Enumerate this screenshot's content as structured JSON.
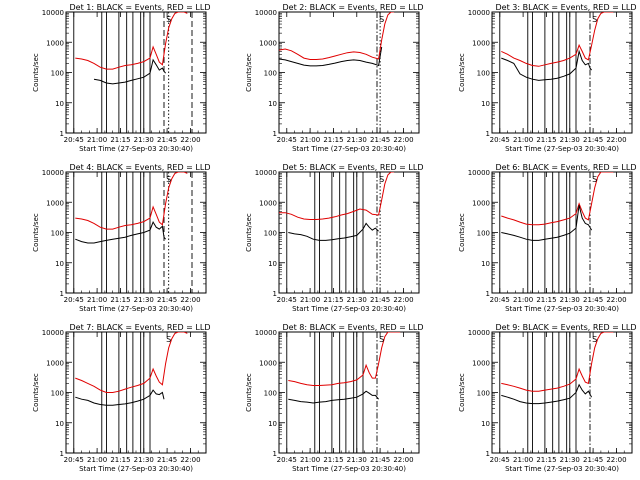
{
  "chart_data": {
    "type": "line",
    "layout": "3x3 grid",
    "shared": {
      "ylabel": "Counts/sec",
      "xlabel": "Start Time (27-Sep-03 20:30:40)",
      "y_scale": "log",
      "ylim": [
        1,
        10000
      ],
      "y_ticks": [
        1,
        10,
        100,
        1000,
        10000
      ],
      "y_tick_labels": [
        "1",
        "10",
        "100",
        "1000",
        "10000"
      ],
      "x_range_min": [
        10,
        100
      ],
      "x_ticks_min": [
        15,
        30,
        45,
        60,
        75,
        90
      ],
      "x_tick_labels": [
        "20:45",
        "21:00",
        "21:15",
        "21:30",
        "21:45",
        "22:00"
      ],
      "saa_label": "S",
      "series_colors": {
        "events": "#000000",
        "lld": "#e00000"
      }
    },
    "panels": [
      {
        "title": "Det 1: BLACK = Events, RED = LLD",
        "det": 1,
        "events_x": [
          28,
          32,
          36,
          40,
          44,
          48,
          52,
          56,
          60,
          64,
          66,
          68,
          70,
          72,
          73,
          74
        ],
        "events_y": [
          60,
          55,
          45,
          42,
          45,
          48,
          55,
          62,
          70,
          95,
          260,
          180,
          120,
          140,
          110,
          95
        ],
        "lld_x": [
          16,
          20,
          24,
          28,
          32,
          36,
          40,
          44,
          48,
          52,
          56,
          60,
          64,
          66,
          68,
          70,
          72,
          74,
          76,
          78,
          80,
          82,
          84,
          86,
          88
        ],
        "lld_y": [
          300,
          280,
          250,
          200,
          150,
          130,
          130,
          150,
          170,
          180,
          200,
          230,
          300,
          700,
          400,
          220,
          180,
          900,
          3000,
          6000,
          9000,
          10000,
          10000,
          10000,
          9000
        ],
        "solid_lines_min": [
          15,
          33,
          36,
          44,
          49,
          53,
          58,
          60,
          64
        ],
        "dashed_lines_min": [
          73,
          91
        ],
        "dotted_lines_min": [
          76
        ],
        "dashdot_lines_min": []
      },
      {
        "title": "Det 2: BLACK = Events, RED = LLD",
        "det": 2,
        "events_x": [
          10,
          14,
          18,
          22,
          26,
          30,
          34,
          38,
          42,
          46,
          50,
          54,
          58,
          62,
          66,
          70,
          74,
          76
        ],
        "events_y": [
          280,
          260,
          230,
          200,
          175,
          165,
          165,
          170,
          185,
          205,
          230,
          250,
          260,
          250,
          220,
          200,
          170,
          700
        ],
        "lld_x": [
          10,
          14,
          18,
          22,
          26,
          30,
          34,
          38,
          42,
          46,
          50,
          54,
          58,
          62,
          66,
          70,
          74,
          76,
          78,
          80,
          82,
          84
        ],
        "lld_y": [
          550,
          600,
          520,
          400,
          300,
          270,
          270,
          280,
          310,
          350,
          400,
          450,
          480,
          460,
          400,
          320,
          280,
          1200,
          4000,
          8000,
          10000,
          10000
        ],
        "solid_lines_min": [],
        "dashed_lines_min": [],
        "dotted_lines_min": [
          75
        ],
        "dashdot_lines_min": [
          73
        ]
      },
      {
        "title": "Det 3: BLACK = Events, RED = LLD",
        "det": 3,
        "events_x": [
          16,
          20,
          24,
          28,
          32,
          36,
          40,
          44,
          48,
          52,
          56,
          60,
          64,
          66,
          68,
          70,
          72,
          73,
          74
        ],
        "events_y": [
          300,
          250,
          200,
          90,
          70,
          60,
          55,
          58,
          60,
          65,
          75,
          90,
          140,
          500,
          250,
          180,
          200,
          140,
          120
        ],
        "lld_x": [
          16,
          20,
          24,
          28,
          32,
          36,
          40,
          44,
          48,
          52,
          56,
          60,
          64,
          66,
          68,
          70,
          72,
          74,
          76,
          78,
          80,
          82,
          84,
          86,
          88
        ],
        "lld_y": [
          500,
          400,
          300,
          250,
          200,
          170,
          160,
          180,
          200,
          220,
          250,
          300,
          400,
          800,
          500,
          300,
          260,
          800,
          2500,
          6000,
          9000,
          10000,
          10000,
          10000,
          10000
        ],
        "solid_lines_min": [
          15,
          33,
          36,
          44,
          49,
          53,
          58,
          60,
          64
        ],
        "dashed_lines_min": [],
        "dotted_lines_min": [],
        "dashdot_lines_min": [
          73
        ]
      },
      {
        "title": "Det 4: BLACK = Events, RED = LLD",
        "det": 4,
        "events_x": [
          16,
          20,
          24,
          28,
          32,
          36,
          40,
          44,
          48,
          52,
          56,
          60,
          64,
          66,
          68,
          70,
          72,
          73,
          74
        ],
        "events_y": [
          60,
          50,
          45,
          45,
          50,
          55,
          60,
          65,
          70,
          80,
          90,
          100,
          120,
          220,
          150,
          130,
          160,
          70,
          60
        ],
        "lld_x": [
          16,
          20,
          24,
          28,
          32,
          36,
          40,
          44,
          48,
          52,
          56,
          60,
          64,
          66,
          68,
          70,
          72,
          74,
          76,
          78,
          80,
          82,
          84,
          86,
          88
        ],
        "lld_y": [
          300,
          280,
          250,
          200,
          150,
          130,
          130,
          150,
          170,
          180,
          200,
          230,
          300,
          700,
          400,
          220,
          180,
          900,
          3000,
          6000,
          9000,
          10000,
          10000,
          10000,
          9000
        ],
        "solid_lines_min": [
          15,
          33,
          36,
          44,
          49,
          53,
          58,
          60,
          64
        ],
        "dashed_lines_min": [
          73,
          91
        ],
        "dotted_lines_min": [
          76
        ],
        "dashdot_lines_min": []
      },
      {
        "title": "Det 5: BLACK = Events, RED = LLD",
        "det": 5,
        "events_x": [
          16,
          20,
          24,
          28,
          32,
          36,
          40,
          44,
          48,
          52,
          56,
          60,
          64,
          66,
          68,
          70,
          72,
          74
        ],
        "events_y": [
          100,
          90,
          85,
          75,
          60,
          55,
          55,
          58,
          62,
          66,
          72,
          80,
          130,
          200,
          150,
          120,
          140,
          110
        ],
        "lld_x": [
          10,
          14,
          18,
          22,
          26,
          30,
          34,
          38,
          42,
          46,
          50,
          54,
          58,
          62,
          66,
          70,
          74,
          76,
          78,
          80,
          82,
          84
        ],
        "lld_y": [
          450,
          450,
          400,
          320,
          280,
          270,
          270,
          280,
          300,
          330,
          380,
          420,
          500,
          600,
          550,
          400,
          380,
          1200,
          4000,
          8000,
          10000,
          10000
        ],
        "solid_lines_min": [
          15,
          33,
          36,
          44,
          49,
          53,
          58,
          60,
          64
        ],
        "dashed_lines_min": [],
        "dotted_lines_min": [
          75
        ],
        "dashdot_lines_min": [
          73
        ]
      },
      {
        "title": "Det 6: BLACK = Events, RED = LLD",
        "det": 6,
        "events_x": [
          16,
          20,
          24,
          28,
          32,
          36,
          40,
          44,
          48,
          52,
          56,
          60,
          64,
          66,
          68,
          70,
          72,
          74
        ],
        "events_y": [
          100,
          90,
          80,
          70,
          60,
          55,
          55,
          60,
          65,
          70,
          80,
          95,
          140,
          800,
          300,
          200,
          180,
          120
        ],
        "lld_x": [
          16,
          20,
          24,
          28,
          32,
          36,
          40,
          44,
          48,
          52,
          56,
          60,
          64,
          66,
          68,
          70,
          72,
          74,
          76,
          78,
          80,
          82,
          84,
          86,
          88
        ],
        "lld_y": [
          350,
          300,
          260,
          220,
          190,
          180,
          180,
          190,
          210,
          230,
          260,
          300,
          420,
          900,
          500,
          300,
          260,
          900,
          3000,
          7000,
          10000,
          10000,
          10000,
          10000,
          10000
        ],
        "solid_lines_min": [
          15,
          33,
          36,
          44,
          49,
          53,
          58,
          60,
          64
        ],
        "dashed_lines_min": [],
        "dotted_lines_min": [],
        "dashdot_lines_min": [
          73
        ]
      },
      {
        "title": "Det 7: BLACK = Events, RED = LLD",
        "det": 7,
        "events_x": [
          16,
          20,
          24,
          28,
          32,
          36,
          40,
          44,
          48,
          52,
          56,
          60,
          64,
          66,
          68,
          70,
          72,
          73
        ],
        "events_y": [
          70,
          60,
          55,
          45,
          40,
          38,
          38,
          40,
          42,
          46,
          52,
          60,
          80,
          120,
          90,
          85,
          100,
          60
        ],
        "lld_x": [
          16,
          20,
          24,
          28,
          32,
          36,
          40,
          44,
          48,
          52,
          56,
          60,
          64,
          66,
          68,
          70,
          72,
          74,
          76,
          78,
          80,
          82,
          84,
          86,
          88
        ],
        "lld_y": [
          300,
          250,
          200,
          160,
          120,
          100,
          100,
          110,
          130,
          150,
          170,
          200,
          300,
          600,
          350,
          220,
          180,
          900,
          3000,
          6000,
          9000,
          10000,
          10000,
          10000,
          9000
        ],
        "solid_lines_min": [
          15,
          33,
          36,
          44,
          49,
          53,
          58,
          60,
          64
        ],
        "dashed_lines_min": [],
        "dotted_lines_min": [],
        "dashdot_lines_min": []
      },
      {
        "title": "Det 8: BLACK = Events, RED = LLD",
        "det": 8,
        "events_x": [
          16,
          20,
          24,
          28,
          32,
          36,
          40,
          44,
          48,
          52,
          56,
          60,
          64,
          66,
          68,
          70,
          72,
          74
        ],
        "events_y": [
          60,
          55,
          50,
          48,
          45,
          48,
          50,
          55,
          58,
          60,
          65,
          70,
          90,
          110,
          95,
          80,
          80,
          60
        ],
        "lld_x": [
          16,
          20,
          24,
          28,
          32,
          36,
          40,
          44,
          48,
          52,
          56,
          60,
          64,
          66,
          68,
          70,
          72,
          74,
          76,
          78,
          80,
          82,
          84,
          86,
          88
        ],
        "lld_y": [
          250,
          230,
          200,
          180,
          170,
          170,
          175,
          180,
          200,
          210,
          230,
          260,
          380,
          800,
          450,
          300,
          300,
          900,
          3000,
          7000,
          10000,
          10000,
          10000,
          10000,
          10000
        ],
        "solid_lines_min": [
          15,
          33,
          36,
          44,
          49,
          53,
          58,
          60,
          64
        ],
        "dashed_lines_min": [],
        "dotted_lines_min": [],
        "dashdot_lines_min": [
          73
        ]
      },
      {
        "title": "Det 9: BLACK = Events, RED = LLD",
        "det": 9,
        "events_x": [
          16,
          20,
          24,
          28,
          32,
          36,
          40,
          44,
          48,
          52,
          56,
          60,
          64,
          66,
          68,
          70,
          72,
          74
        ],
        "events_y": [
          80,
          70,
          60,
          50,
          45,
          43,
          43,
          45,
          48,
          52,
          58,
          65,
          100,
          180,
          120,
          90,
          110,
          70
        ],
        "lld_x": [
          16,
          20,
          24,
          28,
          32,
          36,
          40,
          44,
          48,
          52,
          56,
          60,
          64,
          66,
          68,
          70,
          72,
          74,
          76,
          78,
          80,
          82,
          84,
          86,
          88
        ],
        "lld_y": [
          200,
          180,
          160,
          140,
          120,
          110,
          110,
          120,
          130,
          140,
          160,
          190,
          280,
          600,
          350,
          220,
          200,
          900,
          3000,
          6000,
          9000,
          10000,
          10000,
          10000,
          10000
        ],
        "solid_lines_min": [
          15,
          33,
          36,
          44,
          49,
          53,
          58,
          60,
          64
        ],
        "dashed_lines_min": [],
        "dotted_lines_min": [],
        "dashdot_lines_min": [
          73
        ]
      }
    ]
  }
}
